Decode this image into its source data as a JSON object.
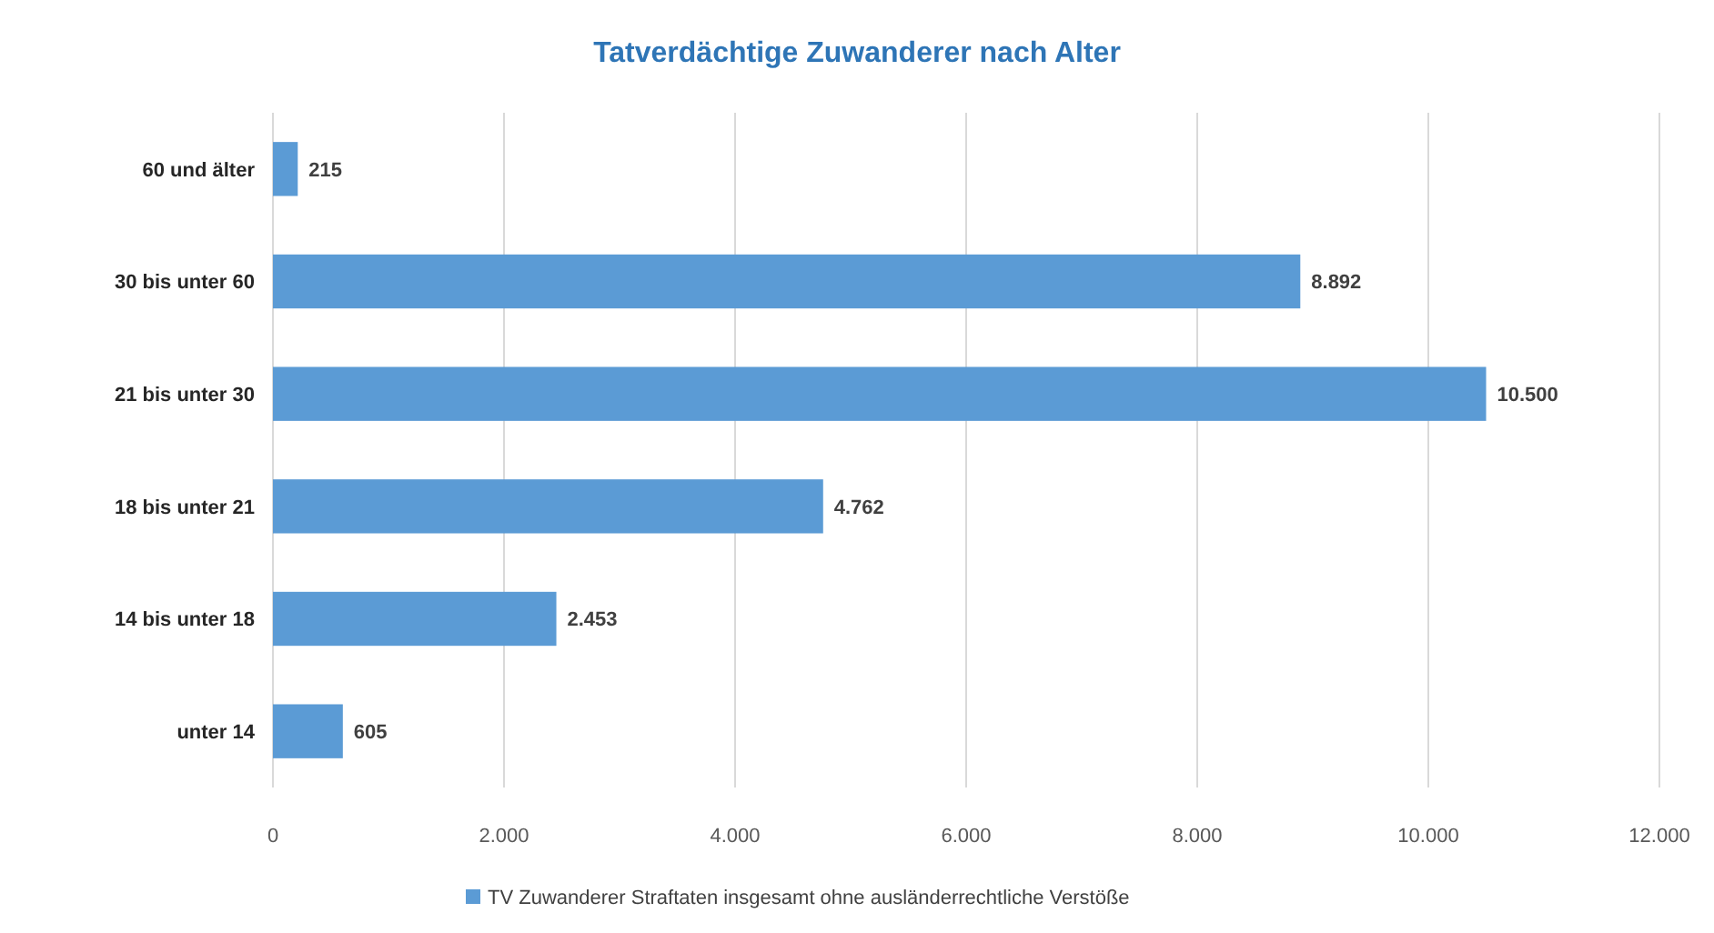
{
  "chart_data": {
    "type": "bar",
    "orientation": "horizontal",
    "title": "Tatverdächtige Zuwanderer nach Alter",
    "categories": [
      "60 und älter",
      "30 bis unter 60",
      "21 bis unter 30",
      "18 bis unter 21",
      "14 bis unter 18",
      "unter 14"
    ],
    "series": [
      {
        "name": "TV Zuwanderer Straftaten insgesamt ohne ausländerrechtliche Verstöße",
        "color": "#5b9bd5",
        "values": [
          215,
          8892,
          10500,
          4762,
          2453,
          605
        ],
        "value_labels": [
          "215",
          "8.892",
          "10.500",
          "4.762",
          "2.453",
          "605"
        ]
      }
    ],
    "xlim": [
      0,
      12000
    ],
    "xticks": [
      0,
      {
        "value": 2000,
        "label": "2.000"
      },
      {
        "value": 4000,
        "label": "4.000"
      },
      {
        "value": 6000,
        "label": "6.000"
      },
      {
        "value": 8000,
        "label": "8.000"
      },
      {
        "value": 10000,
        "label": "10.000"
      },
      {
        "value": 12000,
        "label": "12.000"
      }
    ],
    "grid": "x",
    "legend": "bottom"
  }
}
